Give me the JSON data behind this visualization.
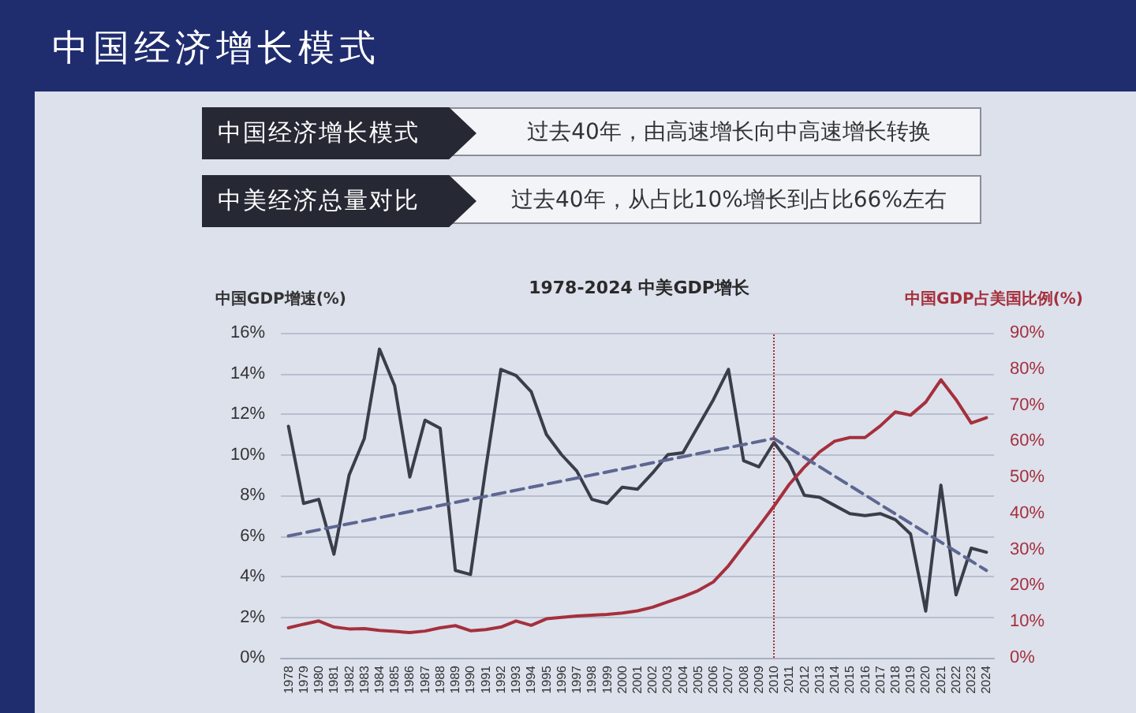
{
  "chart_data": {
    "type": "line",
    "title": "1978-2024 中美GDP增长",
    "ylabel": "中国GDP增速(%)",
    "y2label": "中国GDP占美国比例(%)",
    "annotations": [
      "中国经济增长模式",
      "中国经济增长模式",
      "过去40年，由高速增长向中高速增长转换",
      "中美经济总量对比",
      "过去40年，从占比10%增长到占比66%左右"
    ],
    "x": [
      1978,
      1979,
      1980,
      1981,
      1982,
      1983,
      1984,
      1985,
      1986,
      1987,
      1988,
      1989,
      1990,
      1991,
      1992,
      1993,
      1994,
      1995,
      1996,
      1997,
      1998,
      1999,
      2000,
      2001,
      2002,
      2003,
      2004,
      2005,
      2006,
      2007,
      2008,
      2009,
      2010,
      2011,
      2012,
      2013,
      2014,
      2015,
      2016,
      2017,
      2018,
      2019,
      2020,
      2021,
      2022,
      2023,
      2024
    ],
    "series": [
      {
        "color": "#3a3e4a",
        "values": [
          11.4,
          7.6,
          7.8,
          5.1,
          9.0,
          10.8,
          15.2,
          13.4,
          8.9,
          11.7,
          11.3,
          4.3,
          4.1,
          9.3,
          14.2,
          13.9,
          13.1,
          11.0,
          10.0,
          9.2,
          7.8,
          7.6,
          8.4,
          8.3,
          9.1,
          10.0,
          10.1,
          11.4,
          12.7,
          14.2,
          9.7,
          9.4,
          10.6,
          9.6,
          8.0,
          7.9,
          7.5,
          7.1,
          7.0,
          7.1,
          6.8,
          6.1,
          2.3,
          8.5,
          3.1,
          5.4,
          5.2
        ]
      },
      {
        "color": "#a5303c",
        "axis": "y2",
        "values": [
          8.3,
          9.3,
          10.2,
          8.5,
          8.0,
          8.1,
          7.6,
          7.3,
          7.0,
          7.4,
          8.3,
          8.9,
          7.5,
          7.8,
          8.5,
          10.2,
          9.0,
          10.8,
          11.2,
          11.6,
          11.8,
          12.0,
          12.4,
          13.0,
          14.0,
          15.5,
          16.9,
          18.6,
          21.0,
          25.5,
          31.0,
          36.4,
          42.0,
          48.0,
          52.8,
          57.0,
          60.0,
          61.0,
          61.0,
          64.2,
          68.1,
          67.2,
          70.8,
          77.0,
          71.5,
          65.0,
          66.5
        ]
      },
      {
        "type": "line",
        "x": [
          1978,
          2010,
          2024
        ],
        "values": [
          6.0,
          10.8,
          4.3
        ],
        "color": "#5d6791",
        "line_style": "dashed"
      }
    ],
    "xlim": [
      1977.5,
      2024.5
    ],
    "xticks": [
      1978,
      1979,
      1980,
      1981,
      1982,
      1983,
      1984,
      1985,
      1986,
      1987,
      1988,
      1989,
      1990,
      1991,
      1992,
      1993,
      1994,
      1995,
      1996,
      1997,
      1998,
      1999,
      2000,
      2001,
      2002,
      2003,
      2004,
      2005,
      2006,
      2007,
      2008,
      2009,
      2010,
      2011,
      2012,
      2013,
      2014,
      2015,
      2016,
      2017,
      2018,
      2019,
      2020,
      2021,
      2022,
      2023,
      2024
    ],
    "ylim": [
      0,
      16
    ],
    "yticks": [
      {
        "value": 0,
        "label": "0%"
      },
      {
        "value": 2,
        "label": "2%"
      },
      {
        "value": 4,
        "label": "4%"
      },
      {
        "value": 6,
        "label": "6%"
      },
      {
        "value": 8,
        "label": "8%"
      },
      {
        "value": 10,
        "label": "10%"
      },
      {
        "value": 12,
        "label": "12%"
      },
      {
        "value": 14,
        "label": "14%"
      },
      {
        "value": 16,
        "label": "16%"
      }
    ],
    "y2lim": [
      0,
      90
    ],
    "y2ticks": [
      {
        "value": 0,
        "label": "0%"
      },
      {
        "value": 10,
        "label": "10%"
      },
      {
        "value": 20,
        "label": "20%"
      },
      {
        "value": 30,
        "label": "30%"
      },
      {
        "value": 40,
        "label": "40%"
      },
      {
        "value": 50,
        "label": "50%"
      },
      {
        "value": 60,
        "label": "60%"
      },
      {
        "value": 70,
        "label": "70%"
      },
      {
        "value": 80,
        "label": "80%"
      },
      {
        "value": 90,
        "label": "90%"
      }
    ],
    "ref_lines": [
      {
        "axis": "x",
        "value": 2010,
        "color": "#a5303c",
        "line_style": "dotted"
      }
    ],
    "grid": "y",
    "marker": "none"
  }
}
